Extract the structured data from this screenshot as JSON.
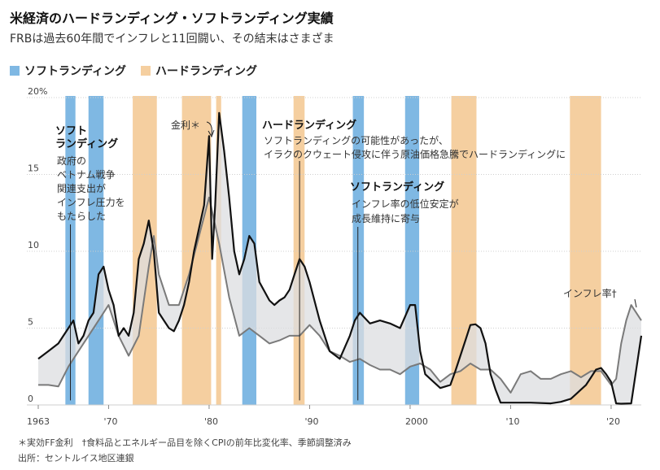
{
  "header": {
    "title": "米経済のハードランディング・ソフトランディング実績",
    "subtitle": "FRBは過去60年間でインフレと11回闘い、その結末はさまざま"
  },
  "legend": {
    "soft": "ソフトランディング",
    "hard": "ハードランディング"
  },
  "colors": {
    "soft": "#7fb8e3",
    "hard": "#f5cfa0",
    "gap": "#dcdde0",
    "rate": "#111111",
    "inflation": "#7a7a7a"
  },
  "annotations": {
    "soft1_title_1": "ソフト",
    "soft1_title_2": "ランディング",
    "soft1_body": [
      "政府の",
      "ベトナム戦争",
      "関連支出が",
      "インフレ圧力を",
      "もたらした"
    ],
    "fed_label": "金利＊",
    "hard_title": "ハードランディング",
    "hard_body": [
      "ソフトランディングの可能性があったが、",
      "イラクのクウェート侵攻に伴う原油価格急騰でハードランディングに"
    ],
    "soft2_title": "ソフトランディング",
    "soft2_body": [
      "インフレ率の低位安定が",
      "成長維持に寄与"
    ],
    "inflation_label": "インフレ率†"
  },
  "footnotes": {
    "line1": "＊実効FF金利　†食料品とエネルギー品目を除くCPIの前年比変化率、季節調整済み",
    "line2": "出所：セントルイス地区連銀"
  },
  "chart_data": {
    "type": "line",
    "title": "米経済のハードランディング・ソフトランディング実績",
    "xlabel": "",
    "ylabel": "",
    "xlim": [
      1963,
      2023
    ],
    "ylim": [
      0,
      20
    ],
    "y_ticks": [
      0,
      5,
      10,
      15,
      20
    ],
    "y_tick_labels": [
      "0",
      "5",
      "10",
      "15",
      "20%"
    ],
    "x_ticks": [
      1963,
      1970,
      1980,
      1990,
      2000,
      2010,
      2020
    ],
    "x_tick_labels": [
      "1963",
      "'70",
      "'80",
      "'90",
      "2000",
      "'10",
      "'20"
    ],
    "series": [
      {
        "name": "実効FF金利",
        "x": [
          1963,
          1964,
          1965,
          1965.5,
          1966,
          1966.5,
          1967,
          1967.5,
          1968,
          1968.5,
          1969,
          1969.5,
          1970,
          1970.5,
          1971,
          1971.5,
          1972,
          1972.5,
          1973,
          1973.5,
          1974,
          1974.5,
          1975,
          1975.5,
          1976,
          1976.5,
          1977,
          1977.5,
          1978,
          1978.5,
          1979,
          1979.5,
          1980,
          1980.3,
          1980.6,
          1981,
          1981.5,
          1982,
          1982.5,
          1983,
          1983.5,
          1984,
          1984.5,
          1985,
          1986,
          1986.5,
          1987,
          1987.5,
          1988,
          1988.5,
          1989,
          1989.5,
          1990,
          1991,
          1992,
          1993,
          1994,
          1994.5,
          1995,
          1996,
          1997,
          1998,
          1999,
          2000,
          2000.5,
          2001,
          2001.5,
          2002,
          2003,
          2004,
          2004.5,
          2005,
          2005.5,
          2006,
          2006.5,
          2007,
          2007.5,
          2008,
          2008.5,
          2009,
          2010,
          2012,
          2014,
          2015,
          2016,
          2016.5,
          2017,
          2017.5,
          2018,
          2018.5,
          2019,
          2019.5,
          2020,
          2020.5,
          2021,
          2022,
          2022.5,
          2023
        ],
        "values": [
          3.0,
          3.5,
          4.0,
          4.5,
          5.0,
          5.5,
          4.0,
          4.5,
          5.5,
          6.0,
          8.5,
          9.0,
          7.5,
          6.5,
          4.5,
          5.0,
          4.5,
          6.0,
          9.5,
          10.5,
          12.0,
          10.0,
          6.0,
          5.5,
          5.0,
          4.8,
          5.5,
          6.5,
          8.0,
          10.0,
          11.5,
          13.0,
          17.5,
          9.5,
          13.0,
          19.0,
          16.5,
          13.5,
          10.0,
          8.5,
          9.5,
          11.0,
          10.5,
          8.0,
          6.8,
          6.5,
          6.8,
          7.0,
          7.5,
          8.5,
          9.5,
          9.0,
          8.0,
          5.5,
          3.5,
          3.0,
          4.5,
          5.5,
          6.0,
          5.3,
          5.5,
          5.3,
          5.0,
          6.5,
          6.5,
          3.5,
          2.0,
          1.7,
          1.1,
          1.3,
          2.2,
          3.2,
          4.2,
          5.2,
          5.25,
          5.0,
          4.0,
          2.0,
          1.0,
          0.15,
          0.15,
          0.15,
          0.1,
          0.2,
          0.4,
          0.7,
          1.0,
          1.3,
          1.8,
          2.3,
          2.4,
          2.0,
          1.5,
          0.1,
          0.08,
          0.1,
          2.3,
          4.5
        ]
      },
      {
        "name": "インフレ率",
        "x": [
          1963,
          1964,
          1965,
          1966,
          1967,
          1968,
          1969,
          1970,
          1971,
          1972,
          1973,
          1974,
          1974.5,
          1975,
          1976,
          1977,
          1978,
          1979,
          1980,
          1980.5,
          1981,
          1982,
          1983,
          1984,
          1985,
          1986,
          1987,
          1988,
          1989,
          1990,
          1991,
          1992,
          1993,
          1994,
          1995,
          1996,
          1997,
          1998,
          1999,
          2000,
          2001,
          2002,
          2003,
          2004,
          2005,
          2006,
          2007,
          2008,
          2009,
          2010,
          2011,
          2012,
          2013,
          2014,
          2015,
          2016,
          2017,
          2018,
          2019,
          2020,
          2020.5,
          2021,
          2021.5,
          2022,
          2022.5,
          2023
        ],
        "values": [
          1.3,
          1.3,
          1.2,
          2.5,
          3.5,
          4.5,
          5.5,
          6.5,
          4.5,
          3.2,
          4.5,
          9.0,
          11.0,
          8.5,
          6.5,
          6.5,
          8.5,
          11.0,
          13.5,
          12.0,
          10.5,
          7.0,
          4.5,
          5.0,
          4.5,
          4.0,
          4.2,
          4.5,
          4.5,
          5.2,
          4.5,
          3.5,
          3.2,
          2.8,
          3.0,
          2.6,
          2.3,
          2.3,
          2.0,
          2.5,
          2.7,
          2.3,
          1.5,
          2.0,
          2.2,
          2.7,
          2.3,
          2.3,
          1.7,
          0.8,
          2.0,
          2.2,
          1.7,
          1.7,
          2.0,
          2.2,
          1.8,
          2.2,
          2.2,
          1.3,
          1.7,
          4.0,
          5.5,
          6.5,
          6.0,
          5.5
        ]
      }
    ],
    "shaded_periods": [
      {
        "type": "soft",
        "start": 1965.7,
        "end": 1966.7
      },
      {
        "type": "soft",
        "start": 1968.0,
        "end": 1969.5
      },
      {
        "type": "hard",
        "start": 1972.4,
        "end": 1974.8
      },
      {
        "type": "hard",
        "start": 1977.3,
        "end": 1980.2
      },
      {
        "type": "hard",
        "start": 1980.7,
        "end": 1981.2
      },
      {
        "type": "soft",
        "start": 1983.3,
        "end": 1984.7
      },
      {
        "type": "hard",
        "start": 1988.4,
        "end": 1989.5
      },
      {
        "type": "soft",
        "start": 1994.3,
        "end": 1995.4
      },
      {
        "type": "soft",
        "start": 1999.5,
        "end": 2000.9
      },
      {
        "type": "hard",
        "start": 2004.1,
        "end": 2006.6
      },
      {
        "type": "hard",
        "start": 2015.9,
        "end": 2019.0
      }
    ]
  }
}
